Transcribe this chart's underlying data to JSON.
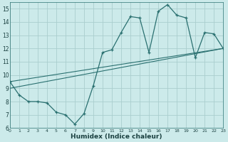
{
  "xlabel": "Humidex (Indice chaleur)",
  "bg_color": "#cceaea",
  "grid_color": "#aacece",
  "line_color": "#2a7070",
  "xlim": [
    0,
    23
  ],
  "ylim": [
    6,
    15.5
  ],
  "xticks": [
    0,
    1,
    2,
    3,
    4,
    5,
    6,
    7,
    8,
    9,
    10,
    11,
    12,
    13,
    14,
    15,
    16,
    17,
    18,
    19,
    20,
    21,
    22,
    23
  ],
  "yticks": [
    6,
    7,
    8,
    9,
    10,
    11,
    12,
    13,
    14,
    15
  ],
  "series1_x": [
    0,
    1,
    2,
    3,
    4,
    5,
    6,
    7,
    8,
    9,
    10,
    11,
    12,
    13,
    14,
    15,
    16,
    17,
    18,
    19,
    20,
    21,
    22,
    23
  ],
  "series1_y": [
    9.5,
    8.5,
    8.0,
    8.0,
    7.9,
    7.2,
    7.0,
    6.3,
    7.1,
    9.2,
    11.7,
    11.9,
    13.2,
    14.4,
    14.3,
    11.7,
    14.8,
    15.3,
    14.5,
    14.3,
    11.3,
    13.2,
    13.1,
    12.0
  ],
  "series2_x": [
    0,
    23
  ],
  "series2_y": [
    9.0,
    12.0
  ],
  "series3_x": [
    0,
    23
  ],
  "series3_y": [
    9.5,
    12.0
  ]
}
